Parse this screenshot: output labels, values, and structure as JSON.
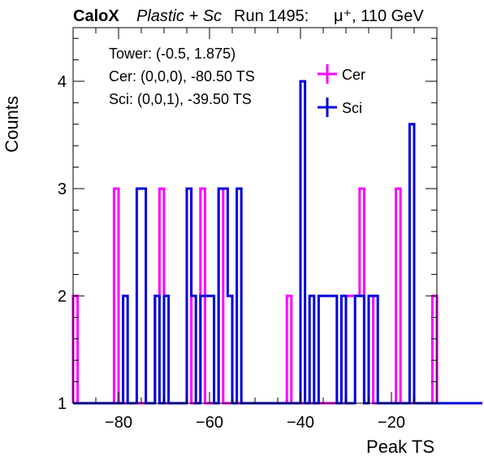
{
  "header": {
    "experiment": "CaloX",
    "detector": "Plastic + Sc",
    "run": "Run 1495:",
    "beam": "μ⁺, 110 GeV"
  },
  "info": {
    "tower": "Tower: (-0.5, 1.875)",
    "cer": "Cer: (0,0,0), -80.50 TS",
    "sci": "Sci: (0,0,1), -39.50 TS"
  },
  "chart_data": {
    "type": "step",
    "title": "",
    "xlabel": "Peak TS",
    "ylabel": "Counts",
    "xlim": [
      -90,
      -10
    ],
    "ylim": [
      1,
      4.5
    ],
    "x_ticks": [
      -80,
      -60,
      -40,
      -20
    ],
    "y_ticks": [
      1,
      2,
      3,
      4
    ],
    "legend_position": "top-right",
    "series": [
      {
        "name": "Cer",
        "color": "#ff00ff",
        "x": [
          -90,
          -89,
          -81,
          -80,
          -77,
          -75,
          -72,
          -71,
          -70,
          -68,
          -65,
          -64,
          -63,
          -62,
          -61,
          -58,
          -57,
          -56,
          -54,
          -52,
          -43,
          -42,
          -41,
          -40,
          -38,
          -37,
          -30,
          -29,
          -28,
          -27,
          -26,
          -25,
          -24,
          -19,
          -18,
          -17,
          -11,
          -10
        ],
        "y": [
          2,
          1,
          3,
          1,
          1,
          1,
          2,
          3,
          1,
          1,
          3,
          1,
          1,
          3,
          1,
          3,
          1,
          1,
          1,
          1,
          2,
          1,
          1,
          1,
          1,
          1,
          2,
          2,
          2,
          3,
          1,
          2,
          1,
          3,
          1,
          1,
          2,
          1
        ]
      },
      {
        "name": "Sci",
        "color": "#0000dd",
        "x": [
          -90,
          -80,
          -79,
          -78,
          -76,
          -74,
          -73,
          -72,
          -71,
          -70,
          -69,
          -68,
          -66,
          -65,
          -64,
          -63,
          -62,
          -59,
          -58,
          -56,
          -55,
          -54,
          -53,
          -52,
          -43,
          -42,
          -41,
          -40,
          -39,
          -38,
          -37,
          -36,
          -32,
          -31,
          -30,
          -28,
          -26,
          -25,
          -24,
          -23,
          -22,
          -16,
          -15,
          -14,
          -10
        ],
        "y": [
          1,
          1,
          2,
          1,
          3,
          1,
          1,
          2,
          1,
          2,
          1,
          1,
          1,
          3,
          2,
          1,
          2,
          1,
          3,
          2,
          1,
          3,
          1,
          1,
          1,
          1,
          1,
          4,
          1,
          2,
          1,
          2,
          1,
          2,
          1,
          2,
          1,
          2,
          2,
          1,
          1,
          3.6,
          1,
          1,
          1
        ]
      }
    ]
  }
}
